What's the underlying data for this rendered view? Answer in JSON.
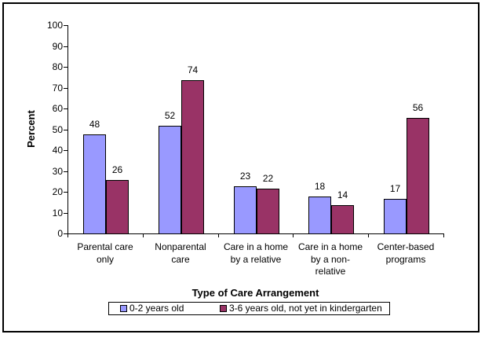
{
  "chart_data": {
    "type": "bar",
    "title": "",
    "xlabel": "Type of Care Arrangement",
    "ylabel": "Percent",
    "ylim": [
      0,
      100
    ],
    "ytick_step": 10,
    "grid": false,
    "legend_position": "bottom",
    "value_labels": true,
    "categories": [
      "Parental care\nonly",
      "Nonparental\ncare",
      "Care in a home\nby a relative",
      "Care in a home\nby a non-\nrelative",
      "Center-based\nprograms"
    ],
    "series": [
      {
        "name": "0-2 years old",
        "color": "#9999FF",
        "border_color": "#000000",
        "values": [
          48,
          52,
          23,
          18,
          17
        ]
      },
      {
        "name": "3-6 years old, not yet in kindergarten",
        "color": "#993366",
        "border_color": "#000000",
        "values": [
          26,
          74,
          22,
          14,
          56
        ]
      }
    ]
  },
  "colors": {
    "background": "#FFFFFF",
    "axis": "#000000",
    "frame_border": "#000000",
    "text": "#000000"
  }
}
